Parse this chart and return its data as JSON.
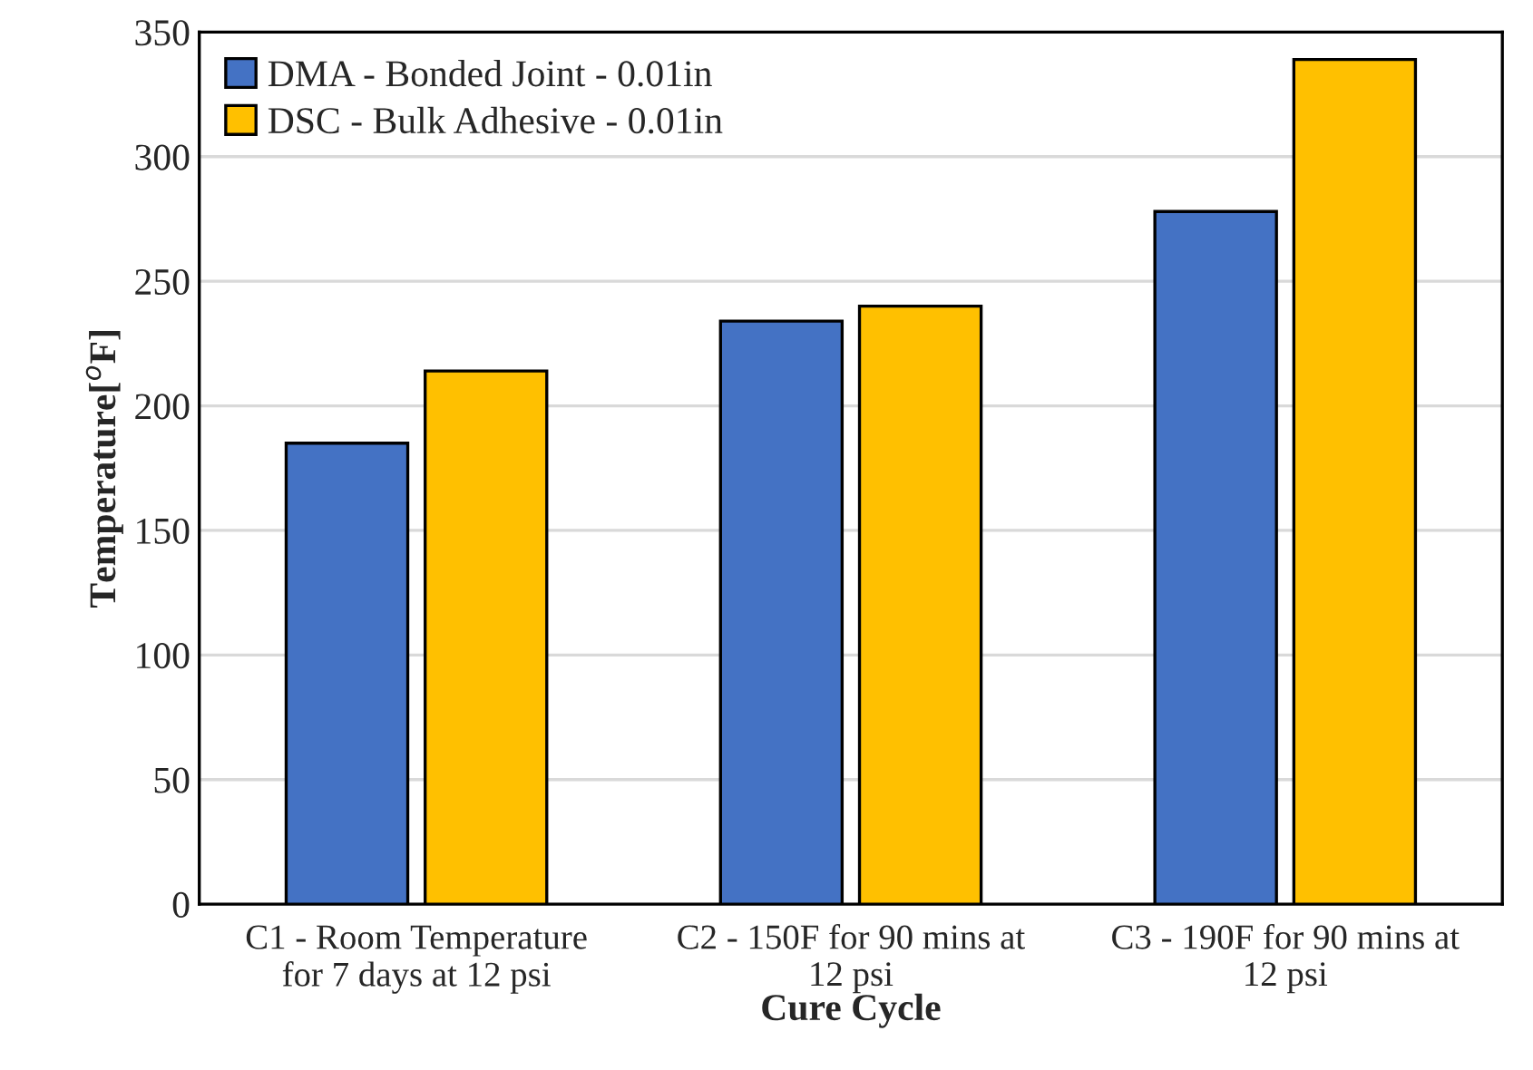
{
  "chart_data": {
    "type": "bar",
    "categories": [
      "C1 - Room Temperature\nfor 7 days at 12 psi",
      "C2 - 150F for 90 mins at\n12 psi",
      "C3 - 190F for 90 mins at\n12 psi"
    ],
    "series": [
      {
        "name": "DMA - Bonded Joint - 0.01in",
        "color": "#4472c4",
        "values": [
          185,
          234,
          278
        ]
      },
      {
        "name": "DSC - Bulk Adhesive - 0.01in",
        "color": "#ffc000",
        "values": [
          214,
          240,
          339
        ]
      }
    ],
    "xlabel": "Cure Cycle",
    "ylabel": "Temperature[$^{o}$F]",
    "ylim": [
      0,
      350
    ],
    "yticks": [
      0,
      50,
      100,
      150,
      200,
      250,
      300,
      350
    ],
    "grid": "y",
    "legend": "top left"
  }
}
